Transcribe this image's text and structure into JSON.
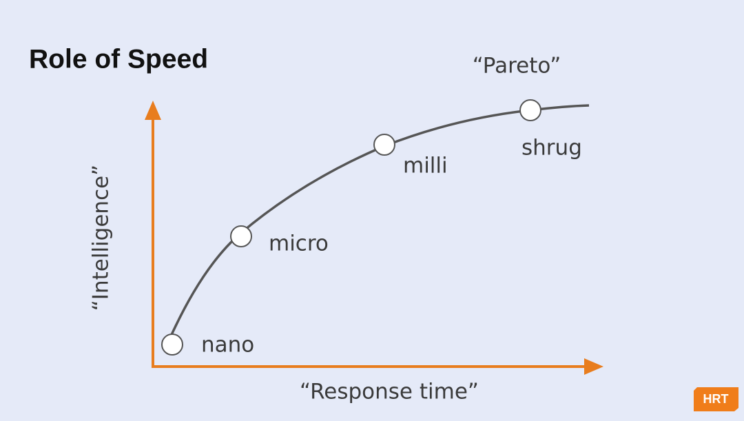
{
  "header": {
    "title": "Role of Speed"
  },
  "diagram": {
    "x_axis_label": "“Response time”",
    "y_axis_label": "“Intelligence”",
    "curve_label": "“Pareto”",
    "points": [
      {
        "label": "nano"
      },
      {
        "label": "micro"
      },
      {
        "label": "milli"
      },
      {
        "label": "shrug"
      }
    ]
  },
  "logo": {
    "text": "HRT"
  }
}
